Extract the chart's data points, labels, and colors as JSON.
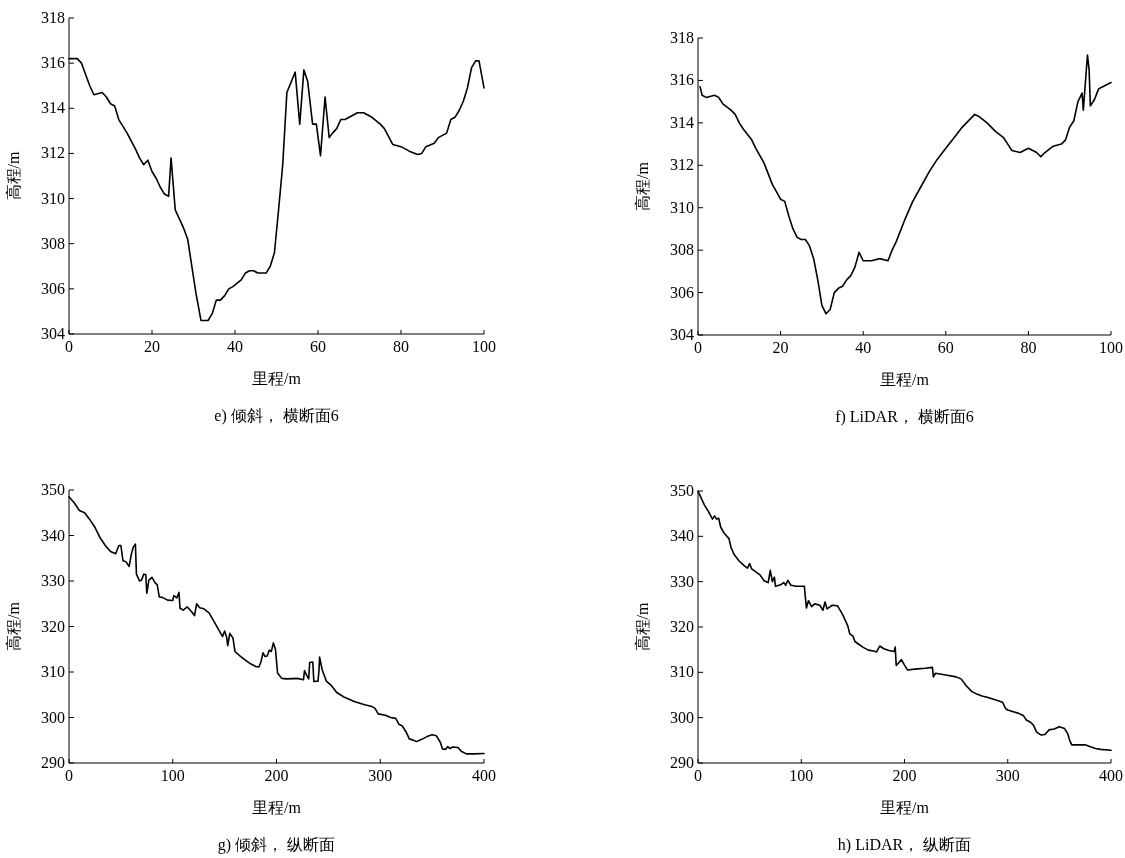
{
  "chart_data": [
    {
      "type": "line",
      "title": "e) 倾斜， 横断面6",
      "xlabel": "里程/m",
      "ylabel": "高程/m",
      "color": "#000000",
      "xlim": [
        0,
        100
      ],
      "ylim": [
        304,
        318
      ],
      "xticks": [
        0,
        20,
        40,
        60,
        80,
        100
      ],
      "yticks": [
        304,
        306,
        308,
        310,
        312,
        314,
        316,
        318
      ],
      "x": [
        0,
        2,
        3,
        4,
        5,
        6,
        8,
        9,
        10,
        11,
        12,
        14,
        16,
        17,
        18,
        19,
        20,
        21,
        22,
        23,
        24,
        24.6,
        25.6,
        27.6,
        28.6,
        29.6,
        30.6,
        31.8,
        32.4,
        33.5,
        34.5,
        35.5,
        36.5,
        37.5,
        38.5,
        39.5,
        41.5,
        42.5,
        43.5,
        44.5,
        45.5,
        47.5,
        48.5,
        49.5,
        50.5,
        51.5,
        52.5,
        54.5,
        55.6,
        56.6,
        57.5,
        58.7,
        59.6,
        60.6,
        61.7,
        62.7,
        63.5,
        64.5,
        65.5,
        66.5,
        67.5,
        69.5,
        71,
        73,
        75,
        76,
        78,
        80,
        82,
        84,
        85,
        86,
        88,
        89,
        91,
        92,
        93,
        94,
        95,
        96,
        97,
        98,
        98.8,
        100
      ],
      "values": [
        316.2,
        316.2,
        316.0,
        315.5,
        315.0,
        314.6,
        314.7,
        314.5,
        314.2,
        314.1,
        313.5,
        312.9,
        312.2,
        311.8,
        311.5,
        311.7,
        311.2,
        310.9,
        310.5,
        310.2,
        310.1,
        311.8,
        309.5,
        308.7,
        308.2,
        307.0,
        305.8,
        304.6,
        304.6,
        304.6,
        304.9,
        305.5,
        305.5,
        305.7,
        306.0,
        306.1,
        306.4,
        306.7,
        306.8,
        306.8,
        306.7,
        306.7,
        307.0,
        307.6,
        309.5,
        311.5,
        314.7,
        315.6,
        313.3,
        315.7,
        315.2,
        313.3,
        313.3,
        311.9,
        314.5,
        312.7,
        312.9,
        313.1,
        313.5,
        313.5,
        313.6,
        313.8,
        313.8,
        313.6,
        313.3,
        313.1,
        312.4,
        312.3,
        312.1,
        311.95,
        312.0,
        312.3,
        312.45,
        312.7,
        312.9,
        313.5,
        313.6,
        313.9,
        314.3,
        314.9,
        315.8,
        316.1,
        316.1,
        314.9
      ]
    },
    {
      "type": "line",
      "title": "f) LiDAR， 横断面6",
      "xlabel": "里程/m",
      "ylabel": "高程/m",
      "color": "#000000",
      "xlim": [
        0,
        100
      ],
      "ylim": [
        304,
        318
      ],
      "xticks": [
        0,
        20,
        40,
        60,
        80,
        100
      ],
      "yticks": [
        304,
        306,
        308,
        310,
        312,
        314,
        316,
        318
      ],
      "x": [
        0.5,
        1,
        2,
        4,
        5,
        6,
        8,
        9,
        10,
        11,
        13,
        14,
        16,
        18,
        20,
        21,
        22,
        23,
        24,
        25,
        26,
        27,
        28,
        29,
        30,
        31,
        32,
        33,
        34,
        35,
        36,
        37,
        38,
        39,
        40,
        42,
        44,
        46,
        47,
        48,
        50,
        52,
        54,
        56,
        58,
        60,
        62,
        64,
        66,
        67,
        68,
        70,
        72,
        74,
        75,
        76,
        78,
        80,
        82,
        83,
        84,
        86,
        88,
        89,
        90,
        91,
        92,
        93,
        93.3,
        94.3,
        94.7,
        95,
        96,
        97,
        98,
        100
      ],
      "values": [
        315.7,
        315.3,
        315.2,
        315.3,
        315.2,
        314.9,
        314.6,
        314.4,
        314.0,
        313.7,
        313.2,
        312.8,
        312.1,
        311.1,
        310.4,
        310.3,
        309.6,
        309.0,
        308.6,
        308.5,
        308.5,
        308.2,
        307.6,
        306.6,
        305.4,
        305.0,
        305.2,
        306.0,
        306.2,
        306.3,
        306.6,
        306.8,
        307.2,
        307.9,
        307.5,
        307.5,
        307.6,
        307.5,
        308.0,
        308.4,
        309.4,
        310.3,
        311.0,
        311.7,
        312.3,
        312.8,
        313.3,
        313.8,
        314.2,
        314.4,
        314.3,
        314.0,
        313.6,
        313.3,
        313.0,
        312.7,
        312.6,
        312.8,
        312.6,
        312.4,
        312.6,
        312.9,
        313.0,
        313.2,
        313.8,
        314.1,
        315.0,
        315.4,
        314.6,
        317.2,
        316.5,
        314.8,
        315.1,
        315.6,
        315.7,
        315.9
      ]
    },
    {
      "type": "line",
      "title": "g) 倾斜， 纵断面",
      "xlabel": "里程/m",
      "ylabel": "高程/m",
      "color": "#000000",
      "xlim": [
        0,
        400
      ],
      "ylim": [
        290,
        350
      ],
      "xticks": [
        0,
        100,
        200,
        300,
        400
      ],
      "yticks": [
        290,
        300,
        310,
        320,
        330,
        340,
        350
      ],
      "x": [
        0,
        5,
        10,
        15,
        20,
        25,
        30,
        35,
        40,
        45,
        48,
        50,
        52,
        55,
        58,
        60,
        62,
        64,
        65,
        68,
        70,
        72,
        74,
        75,
        77,
        80,
        83,
        85,
        87,
        90,
        95,
        100,
        101,
        104,
        106,
        107,
        110,
        114,
        118,
        121,
        123,
        126,
        130,
        135,
        140,
        145,
        148,
        150,
        152,
        153,
        155,
        158,
        160,
        165,
        170,
        175,
        180,
        183,
        185,
        187,
        189,
        191,
        193,
        195,
        197,
        199,
        201,
        205,
        210,
        220,
        226,
        227,
        229,
        231,
        232,
        235,
        236,
        240,
        241,
        241.5,
        244,
        248,
        253,
        258,
        265,
        275,
        285,
        292,
        295,
        298,
        305,
        310,
        315,
        318,
        321,
        325,
        328,
        332,
        335,
        340,
        345,
        350,
        354,
        358,
        360,
        363,
        365,
        367,
        370,
        375,
        378,
        383,
        390,
        400
      ],
      "values": [
        348.5,
        347.2,
        345.5,
        345,
        343.5,
        341.8,
        339.5,
        337.8,
        336.5,
        336,
        337.8,
        337.8,
        334.5,
        334.2,
        333.2,
        335.8,
        337.5,
        338.1,
        331.5,
        330,
        330.2,
        331.5,
        331.4,
        327.3,
        330.2,
        330.8,
        329.6,
        329.2,
        326.5,
        326.4,
        325.8,
        325.7,
        326.8,
        326.3,
        327.5,
        324,
        323.6,
        324.3,
        323.3,
        322.4,
        325,
        324.1,
        323.9,
        323,
        321,
        319,
        317.8,
        319,
        317.6,
        315.8,
        318.5,
        317.5,
        314.5,
        313.5,
        312.6,
        311.8,
        311.2,
        311.1,
        312.2,
        314.2,
        313.4,
        313.5,
        314.8,
        314.5,
        316.4,
        315,
        309.8,
        308.6,
        308.5,
        308.6,
        308.3,
        310.3,
        309.3,
        308.5,
        312.1,
        312.2,
        307.9,
        308,
        310.5,
        313.3,
        310.5,
        308,
        307,
        305.5,
        304.5,
        303.5,
        302.8,
        302.4,
        302,
        300.8,
        300.5,
        300,
        299.8,
        298.5,
        298.2,
        296.8,
        295.3,
        295,
        294.7,
        295.2,
        295.8,
        296.2,
        296,
        294.5,
        293.1,
        293,
        293.6,
        293.2,
        293.5,
        293.4,
        292.6,
        292,
        292,
        292.1
      ]
    },
    {
      "type": "line",
      "title": "h) LiDAR， 纵断面",
      "xlabel": "里程/m",
      "ylabel": "高程/m",
      "color": "#000000",
      "xlim": [
        0,
        400
      ],
      "ylim": [
        290,
        350
      ],
      "xticks": [
        0,
        100,
        200,
        300,
        400
      ],
      "yticks": [
        290,
        300,
        310,
        320,
        330,
        340,
        350
      ],
      "x": [
        0,
        3,
        6,
        10,
        14,
        16,
        18,
        20,
        22,
        25,
        30,
        32,
        35,
        40,
        45,
        48,
        50,
        52,
        60,
        64,
        68,
        70,
        72,
        74,
        75,
        80,
        83,
        85,
        87,
        90,
        95,
        103,
        104,
        105,
        107,
        110,
        113,
        118,
        121,
        123,
        125,
        130,
        135,
        140,
        145,
        147,
        150,
        152,
        155,
        160,
        165,
        170,
        173,
        176,
        180,
        185,
        190,
        191,
        192,
        194,
        197,
        200,
        203,
        210,
        220,
        227,
        228,
        230,
        240,
        250,
        255,
        260,
        265,
        270,
        275,
        280,
        290,
        295,
        298,
        300,
        310,
        315,
        318,
        322,
        325,
        328,
        332,
        336,
        340,
        345,
        350,
        355,
        358,
        360,
        362,
        370,
        375,
        380,
        385,
        390,
        400
      ],
      "values": [
        350,
        348.5,
        347,
        345.5,
        343.8,
        344.5,
        343.8,
        344,
        342,
        340.8,
        339.5,
        337.5,
        336,
        334.5,
        333.5,
        333,
        334,
        332.8,
        331.5,
        330.2,
        329.8,
        332.5,
        330,
        331,
        329,
        329.3,
        329.8,
        329.2,
        330.3,
        329.2,
        329,
        329,
        326.5,
        324.2,
        325.8,
        324.5,
        325.1,
        324.8,
        323.7,
        325.5,
        324,
        324.8,
        324.7,
        322.8,
        320.3,
        318.5,
        318,
        316.8,
        316.3,
        315.5,
        314.9,
        314.7,
        314.5,
        315.8,
        315.2,
        314.8,
        314.6,
        315.6,
        311.5,
        312,
        312.8,
        311.6,
        310.5,
        310.7,
        310.9,
        311.1,
        309,
        309.8,
        309.4,
        309,
        308.5,
        307,
        305.8,
        305.2,
        304.8,
        304.5,
        303.8,
        303.4,
        302,
        301.7,
        301,
        300.5,
        299.5,
        299,
        298.3,
        296.8,
        296.2,
        296.3,
        297.3,
        297.5,
        298,
        297.6,
        296.5,
        295,
        294,
        294,
        294,
        293.6,
        293.2,
        293,
        292.8
      ]
    }
  ]
}
